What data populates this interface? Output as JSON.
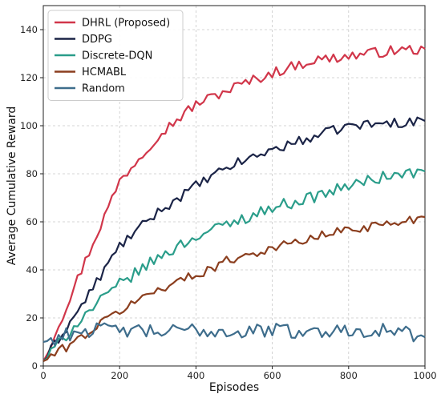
{
  "chart_data": {
    "type": "line",
    "title": "",
    "xlabel": "Episodes",
    "ylabel": "Average Cumulative Reward",
    "xlim": [
      0,
      1000
    ],
    "ylim": [
      0,
      150
    ],
    "xticks": [
      0,
      200,
      400,
      600,
      800,
      1000
    ],
    "yticks": [
      0,
      20,
      40,
      60,
      80,
      100,
      120,
      140
    ],
    "grid": true,
    "legend_position": "top-left",
    "x": [
      0,
      100,
      200,
      300,
      400,
      500,
      600,
      700,
      800,
      900,
      1000
    ],
    "series": [
      {
        "name": "DHRL (Proposed)",
        "color": "#d1364a",
        "values": [
          2,
          40,
          77,
          96,
          109,
          116,
          122,
          127,
          129,
          131,
          132
        ]
      },
      {
        "name": "DDPG",
        "color": "#1b2447",
        "values": [
          2,
          25,
          50,
          64,
          75,
          84,
          90,
          95,
          100,
          101,
          102
        ]
      },
      {
        "name": "Discrete-DQN",
        "color": "#2a9d8a",
        "values": [
          2,
          20,
          34,
          45,
          54,
          60,
          66,
          70,
          75,
          79,
          81
        ]
      },
      {
        "name": "HCMABL",
        "color": "#8b3e1e",
        "values": [
          2,
          12,
          23,
          32,
          38,
          45,
          49,
          53,
          57,
          59,
          62
        ]
      },
      {
        "name": "Random",
        "color": "#3e6d8c",
        "values": [
          10,
          15,
          15,
          14,
          15,
          14,
          15,
          14,
          15,
          15,
          12
        ]
      }
    ]
  }
}
